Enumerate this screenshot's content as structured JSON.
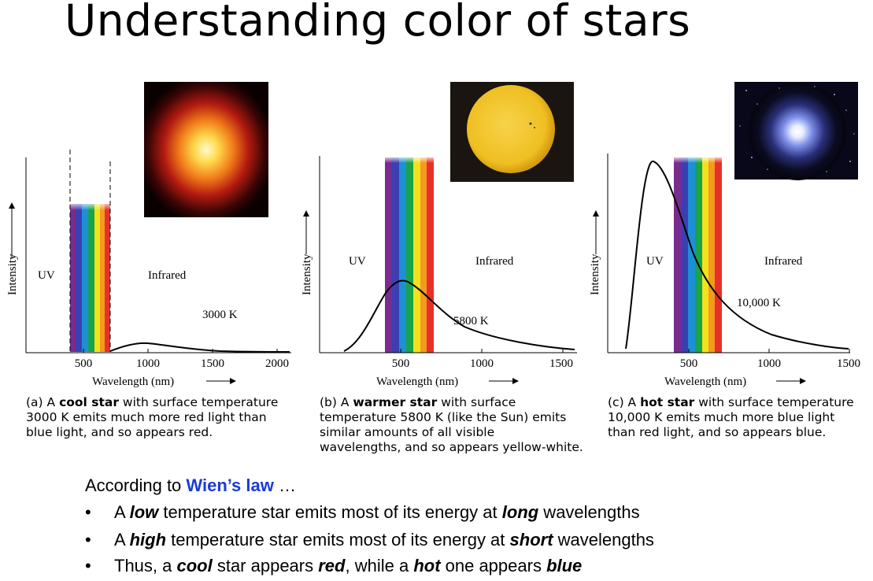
{
  "title": "Understanding color of stars",
  "colors": {
    "wien_law": "#1a3bd6",
    "spectrum": [
      "#7a2b8f",
      "#3b3fb0",
      "#1d8fd6",
      "#19a34a",
      "#f2e21b",
      "#f39a1f",
      "#e8302a"
    ]
  },
  "axis_common": {
    "ylabel": "Intensity",
    "xlabel": "Wavelength (nm)",
    "uv_label": "UV",
    "ir_label": "Infrared"
  },
  "panels": [
    {
      "id": "a",
      "temperature_label": "3000 K",
      "ticks": [
        "500",
        "1000",
        "1500",
        "2000"
      ],
      "caption_prefix": "(a) A ",
      "caption_bold": "cool star",
      "caption_line1_rest": " with surface temperature",
      "caption_line2": "3000 K emits much more red light than",
      "caption_line3": "blue light, and so appears red.",
      "photo": "red-star-photo"
    },
    {
      "id": "b",
      "temperature_label": "5800 K",
      "ticks": [
        "500",
        "1000",
        "1500"
      ],
      "caption_prefix": "(b) A ",
      "caption_bold": "warmer star",
      "caption_line1_rest": " with surface",
      "caption_line2": "temperature 5800 K (like the Sun) emits",
      "caption_line3": "similar amounts of all visible",
      "caption_line4": "wavelengths, and so appears yellow-white.",
      "photo": "sun-photo"
    },
    {
      "id": "c",
      "temperature_label": "10,000 K",
      "ticks": [
        "500",
        "1000",
        "1500"
      ],
      "caption_prefix": "(c) A ",
      "caption_bold": "hot star",
      "caption_line1_rest": " with surface temperature",
      "caption_line2": "10,000 K emits much more blue light",
      "caption_line3": "than red light, and so appears blue.",
      "photo": "blue-star-photo"
    }
  ],
  "wien": {
    "intro_pre": "According to ",
    "intro_law": "Wien’s law",
    "intro_post": " …",
    "bullets": [
      {
        "p1": "A ",
        "b1": "low",
        "p2": " temperature star emits most of its energy at ",
        "b2": "long",
        "p3": " wavelengths",
        "p4": "",
        "b3": "",
        "p5": ""
      },
      {
        "p1": "A ",
        "b1": "high",
        "p2": " temperature star emits most of its energy at ",
        "b2": "short",
        "p3": " wavelengths",
        "p4": "",
        "b3": "",
        "p5": ""
      },
      {
        "p1": "Thus, a ",
        "b1": "cool",
        "p2": " star appears ",
        "b2": "red",
        "p3": ", while a ",
        "p4": "",
        "b3": "hot",
        "p5": " one appears ",
        "b4": "blue"
      }
    ]
  }
}
